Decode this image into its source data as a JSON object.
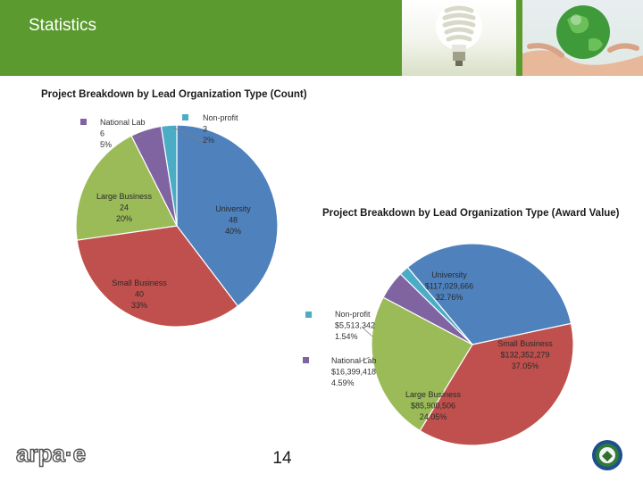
{
  "slide": {
    "title": "Statistics",
    "page_number": "14",
    "logo_text": "arpa·e",
    "accent_color": "#5a9a2e"
  },
  "chart_data": [
    {
      "type": "pie",
      "title": "Project Breakdown by Lead Organization Type (Count)",
      "slices": [
        {
          "label": "University",
          "value": 48,
          "value_text": "48",
          "percent": 40,
          "percent_text": "40%",
          "color": "#4f81bd"
        },
        {
          "label": "Small Business",
          "value": 40,
          "value_text": "40",
          "percent": 33,
          "percent_text": "33%",
          "color": "#c0504d"
        },
        {
          "label": "Large Business",
          "value": 24,
          "value_text": "24",
          "percent": 20,
          "percent_text": "20%",
          "color": "#9bbb59"
        },
        {
          "label": "National Lab",
          "value": 6,
          "value_text": "6",
          "percent": 5,
          "percent_text": "5%",
          "color": "#8064a2"
        },
        {
          "label": "Non-profit",
          "value": 3,
          "value_text": "3",
          "percent": 2,
          "percent_text": "2%",
          "color": "#4bacc6"
        }
      ]
    },
    {
      "type": "pie",
      "title": "Project Breakdown by Lead Organization Type (Award Value)",
      "slices": [
        {
          "label": "University",
          "value": 117029666,
          "value_text": "$117,029,666",
          "percent": 32.76,
          "percent_text": "32.76%",
          "color": "#4f81bd"
        },
        {
          "label": "Small Business",
          "value": 132352279,
          "value_text": "$132,352,279",
          "percent": 37.05,
          "percent_text": "37.05%",
          "color": "#c0504d"
        },
        {
          "label": "Large Business",
          "value": 85900506,
          "value_text": "$85,900,506",
          "percent": 24.05,
          "percent_text": "24.05%",
          "color": "#9bbb59"
        },
        {
          "label": "National Lab",
          "value": 16399418,
          "value_text": "$16,399,418",
          "percent": 4.59,
          "percent_text": "4.59%",
          "color": "#8064a2"
        },
        {
          "label": "Non-profit",
          "value": 5513342,
          "value_text": "$5,513,342",
          "percent": 1.54,
          "percent_text": "1.54%",
          "color": "#4bacc6"
        }
      ]
    }
  ]
}
